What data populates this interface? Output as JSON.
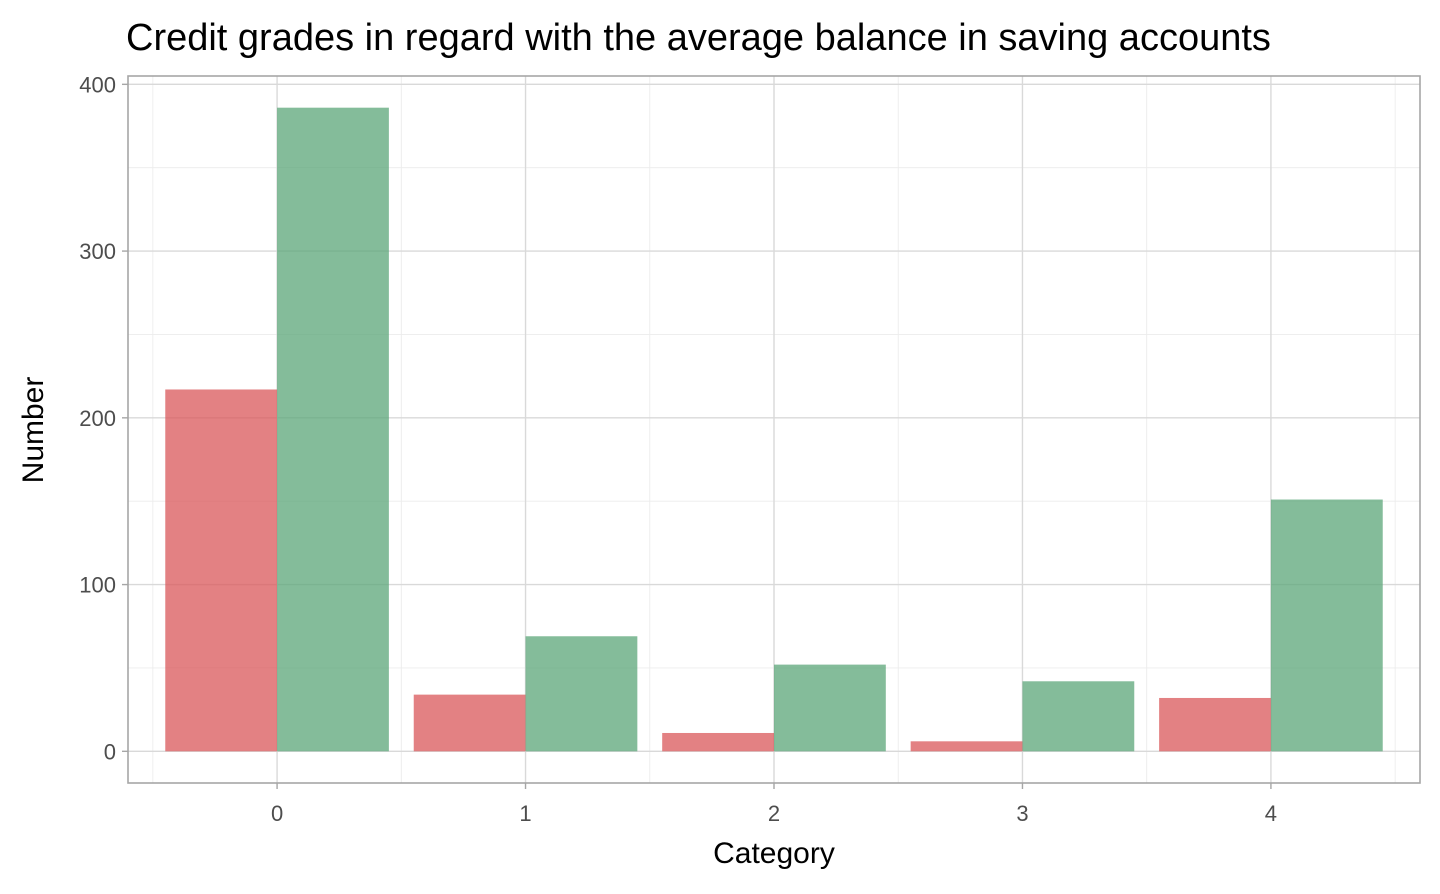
{
  "chart_data": {
    "type": "bar",
    "title": "Credit grades in regard with the average balance in saving accounts",
    "xlabel": "Category",
    "ylabel": "Number",
    "categories": [
      "0",
      "1",
      "2",
      "3",
      "4"
    ],
    "series": [
      {
        "color": "#d9575a",
        "values": [
          217,
          34,
          11,
          6,
          32
        ]
      },
      {
        "color": "#5ba678",
        "values": [
          386,
          69,
          52,
          42,
          151
        ]
      }
    ],
    "ylim": [
      -19,
      405
    ],
    "yticks": [
      0,
      100,
      200,
      300,
      400
    ],
    "grid": true,
    "legend": "none"
  }
}
